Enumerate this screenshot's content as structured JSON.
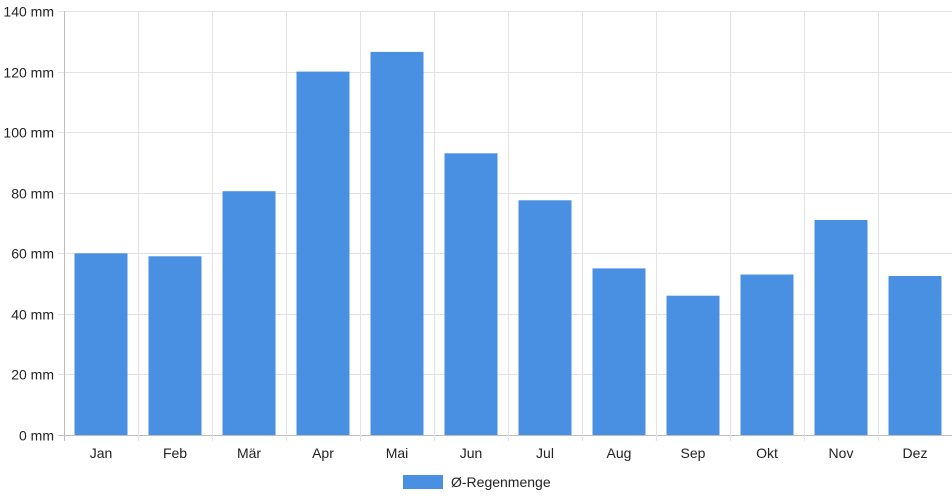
{
  "chart_data": {
    "type": "bar",
    "categories": [
      "Jan",
      "Feb",
      "Mär",
      "Apr",
      "Mai",
      "Jun",
      "Jul",
      "Aug",
      "Sep",
      "Okt",
      "Nov",
      "Dez"
    ],
    "series": [
      {
        "name": "Ø-Regenmenge",
        "color": "#4a90e2",
        "values": [
          60,
          59,
          80.5,
          120,
          126.5,
          93,
          77.5,
          55,
          46,
          53,
          71,
          52.5
        ]
      }
    ],
    "y_unit": "mm",
    "ylim": [
      0,
      140
    ],
    "y_ticks": [
      0,
      20,
      40,
      60,
      80,
      100,
      120,
      140
    ],
    "grid": true,
    "legend_position": "bottom-center"
  }
}
